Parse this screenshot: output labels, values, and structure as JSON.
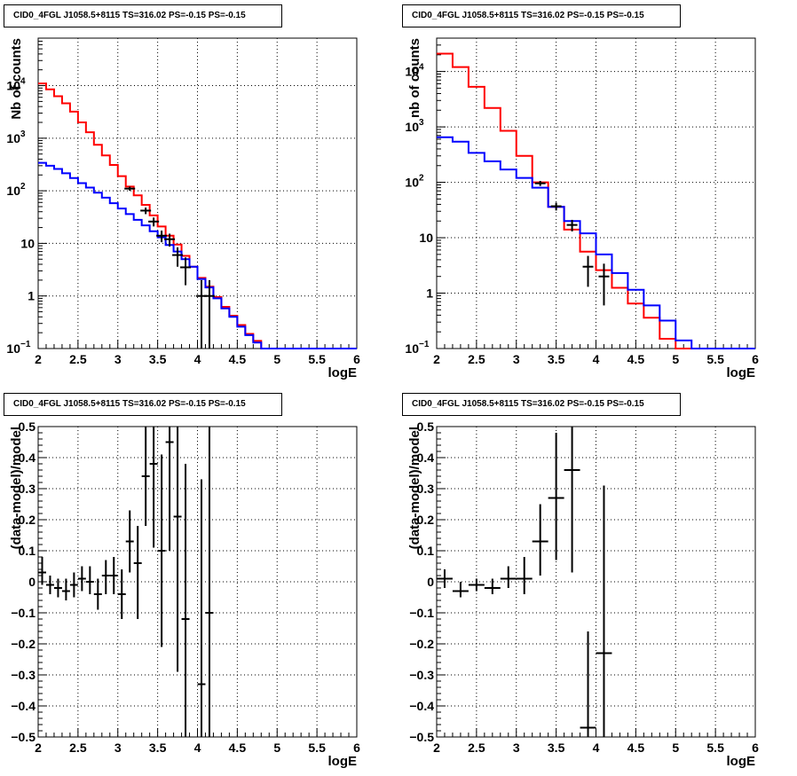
{
  "panels": [
    {
      "title": "CID0_4FGL J1058.5+8115 TS=316.02 PS=-0.15 PS=-0.15"
    },
    {
      "title": "CID0_4FGL J1058.5+8115 TS=316.02 PS=-0.15 PS=-0.15"
    },
    {
      "title": "CID0_4FGL J1058.5+8115 TS=316.02 PS=-0.15 PS=-0.15"
    },
    {
      "title": "CID0_4FGL J1058.5+8115 TS=316.02 PS=-0.15 PS=-0.15"
    }
  ],
  "colors": {
    "total_model": "#ff0000",
    "component_model": "#0000ff",
    "data": "#000000",
    "grid": "#000000"
  },
  "chart_data": [
    {
      "type": "line",
      "title": "CID0_4FGL J1058.5+8115 TS=316.02 PS=-0.15 PS=-0.15",
      "xlabel": "logE",
      "ylabel": "Nb of counts",
      "xlim": [
        2,
        6
      ],
      "ylim": [
        0.1,
        80000
      ],
      "yscale": "log",
      "grid": true,
      "xticks": [
        "2",
        "2.5",
        "3",
        "3.5",
        "4",
        "4.5",
        "5",
        "5.5",
        "6"
      ],
      "yticks": [
        {
          "value": 0.1,
          "label": "10",
          "sup": "−1"
        },
        {
          "value": 1,
          "label": "1",
          "sup": ""
        },
        {
          "value": 10,
          "label": "10",
          "sup": ""
        },
        {
          "value": 100,
          "label": "10",
          "sup": "2"
        },
        {
          "value": 1000,
          "label": "10",
          "sup": "3"
        },
        {
          "value": 10000,
          "label": "10",
          "sup": "4"
        }
      ],
      "bin_edges": [
        2.0,
        2.1,
        2.2,
        2.3,
        2.4,
        2.5,
        2.6,
        2.7,
        2.8,
        2.9,
        3.0,
        3.1,
        3.2,
        3.3,
        3.4,
        3.5,
        3.6,
        3.7,
        3.8,
        3.9,
        4.0,
        4.1,
        4.2,
        4.3,
        4.4,
        4.5,
        4.6,
        4.7,
        4.8,
        4.9,
        5.0,
        5.1,
        5.2,
        5.3,
        5.4,
        5.5,
        5.6,
        5.7,
        5.8,
        5.9,
        6.0
      ],
      "series": [
        {
          "name": "",
          "color": "#ff0000",
          "values": [
            11000,
            8500,
            6300,
            4600,
            3200,
            2000,
            1300,
            750,
            470,
            310,
            190,
            120,
            82,
            54,
            34,
            21,
            14,
            9.5,
            5.8,
            3.6,
            2.2,
            1.5,
            0.95,
            0.62,
            0.42,
            0.28,
            0.19,
            0.14,
            0.1,
            0.1,
            0.1,
            0.1,
            0.1,
            0.1,
            0.1,
            0.1,
            0.1,
            0.1,
            0.1,
            0.1
          ]
        },
        {
          "name": "",
          "color": "#0000ff",
          "values": [
            340,
            300,
            260,
            215,
            175,
            140,
            115,
            92,
            74,
            58,
            46,
            36,
            28,
            22,
            17,
            13,
            9.3,
            7.0,
            5.0,
            3.6,
            2.1,
            1.45,
            0.9,
            0.58,
            0.4,
            0.26,
            0.18,
            0.13,
            0.1,
            0.1,
            0.1,
            0.1,
            0.1,
            0.1,
            0.1,
            0.1,
            0.1,
            0.1,
            0.1,
            0.1
          ]
        }
      ],
      "points": [
        {
          "x": 3.15,
          "y": 110,
          "ylo": 100,
          "yhi": 120
        },
        {
          "x": 3.35,
          "y": 42,
          "ylo": 36,
          "yhi": 48
        },
        {
          "x": 3.45,
          "y": 26,
          "ylo": 21,
          "yhi": 31
        },
        {
          "x": 3.55,
          "y": 14,
          "ylo": 10.5,
          "yhi": 17.5
        },
        {
          "x": 3.65,
          "y": 12,
          "ylo": 8.7,
          "yhi": 15.3
        },
        {
          "x": 3.75,
          "y": 6,
          "ylo": 3.6,
          "yhi": 8.4
        },
        {
          "x": 3.85,
          "y": 3.5,
          "ylo": 1.6,
          "yhi": 5.4
        },
        {
          "x": 4.05,
          "y": 1.0,
          "ylo": 0.1,
          "yhi": 2.0
        },
        {
          "x": 4.15,
          "y": 1.0,
          "ylo": 0.1,
          "yhi": 2.0
        }
      ]
    },
    {
      "type": "line",
      "title": "CID0_4FGL J1058.5+8115 TS=316.02 PS=-0.15 PS=-0.15",
      "xlabel": "logE",
      "ylabel": "nb of counts",
      "xlim": [
        2,
        6
      ],
      "ylim": [
        0.1,
        40000
      ],
      "yscale": "log",
      "grid": true,
      "xticks": [
        "2",
        "2.5",
        "3",
        "3.5",
        "4",
        "4.5",
        "5",
        "5.5",
        "6"
      ],
      "yticks": [
        {
          "value": 0.1,
          "label": "10",
          "sup": "−1"
        },
        {
          "value": 1,
          "label": "1",
          "sup": ""
        },
        {
          "value": 10,
          "label": "10",
          "sup": ""
        },
        {
          "value": 100,
          "label": "10",
          "sup": "2"
        },
        {
          "value": 1000,
          "label": "10",
          "sup": "3"
        },
        {
          "value": 10000,
          "label": "10",
          "sup": "4"
        }
      ],
      "bin_edges": [
        2.0,
        2.2,
        2.4,
        2.6,
        2.8,
        3.0,
        3.2,
        3.4,
        3.6,
        3.8,
        4.0,
        4.2,
        4.4,
        4.6,
        4.8,
        5.0,
        5.2,
        5.4,
        5.6,
        5.8,
        6.0
      ],
      "series": [
        {
          "name": "",
          "color": "#ff0000",
          "values": [
            21000,
            12000,
            5300,
            2200,
            850,
            300,
            100,
            36,
            14,
            5.6,
            2.6,
            1.25,
            0.65,
            0.36,
            0.15,
            0.1,
            0.1,
            0.1,
            0.1,
            0.1
          ]
        },
        {
          "name": "",
          "color": "#0000ff",
          "values": [
            650,
            540,
            340,
            240,
            170,
            120,
            80,
            36,
            20,
            12,
            5.0,
            2.3,
            1.15,
            0.6,
            0.32,
            0.14,
            0.1,
            0.1,
            0.1,
            0.1
          ]
        }
      ],
      "points": [
        {
          "x": 3.3,
          "y": 96,
          "ylo": 86,
          "yhi": 106
        },
        {
          "x": 3.5,
          "y": 37,
          "ylo": 31,
          "yhi": 43
        },
        {
          "x": 3.7,
          "y": 17,
          "ylo": 13,
          "yhi": 21
        },
        {
          "x": 3.9,
          "y": 3.0,
          "ylo": 1.3,
          "yhi": 4.7
        },
        {
          "x": 4.1,
          "y": 2.0,
          "ylo": 0.6,
          "yhi": 3.4
        }
      ]
    },
    {
      "type": "scatter",
      "title": "CID0_4FGL J1058.5+8115 TS=316.02 PS=-0.15 PS=-0.15",
      "xlabel": "logE",
      "ylabel": "(data-model)/model",
      "xlim": [
        2,
        6
      ],
      "ylim": [
        -0.5,
        0.5
      ],
      "grid": true,
      "xticks": [
        "2",
        "2.5",
        "3",
        "3.5",
        "4",
        "4.5",
        "5",
        "5.5",
        "6"
      ],
      "yticks": [
        "−0.5",
        "−0.4",
        "−0.3",
        "−0.2",
        "−0.1",
        "0",
        "0.1",
        "0.2",
        "0.3",
        "0.4",
        "0.5"
      ],
      "points": [
        {
          "x": 2.05,
          "xlo": 2.0,
          "xhi": 2.1,
          "y": 0.03,
          "ylo": -0.01,
          "yhi": 0.08
        },
        {
          "x": 2.15,
          "xlo": 2.1,
          "xhi": 2.2,
          "y": -0.01,
          "ylo": -0.04,
          "yhi": 0.02
        },
        {
          "x": 2.25,
          "xlo": 2.2,
          "xhi": 2.3,
          "y": -0.02,
          "ylo": -0.05,
          "yhi": 0.01
        },
        {
          "x": 2.35,
          "xlo": 2.3,
          "xhi": 2.4,
          "y": -0.03,
          "ylo": -0.06,
          "yhi": 0.01
        },
        {
          "x": 2.45,
          "xlo": 2.4,
          "xhi": 2.5,
          "y": -0.01,
          "ylo": -0.05,
          "yhi": 0.03
        },
        {
          "x": 2.55,
          "xlo": 2.5,
          "xhi": 2.6,
          "y": 0.01,
          "ylo": -0.03,
          "yhi": 0.05
        },
        {
          "x": 2.65,
          "xlo": 2.6,
          "xhi": 2.7,
          "y": 0.0,
          "ylo": -0.04,
          "yhi": 0.05
        },
        {
          "x": 2.75,
          "xlo": 2.7,
          "xhi": 2.8,
          "y": -0.04,
          "ylo": -0.09,
          "yhi": 0.01
        },
        {
          "x": 2.85,
          "xlo": 2.8,
          "xhi": 2.9,
          "y": 0.02,
          "ylo": -0.04,
          "yhi": 0.07
        },
        {
          "x": 2.95,
          "xlo": 2.9,
          "xhi": 3.0,
          "y": 0.02,
          "ylo": -0.04,
          "yhi": 0.08
        },
        {
          "x": 3.05,
          "xlo": 3.0,
          "xhi": 3.1,
          "y": -0.04,
          "ylo": -0.12,
          "yhi": 0.04
        },
        {
          "x": 3.15,
          "xlo": 3.1,
          "xhi": 3.2,
          "y": 0.13,
          "ylo": 0.03,
          "yhi": 0.23
        },
        {
          "x": 3.25,
          "xlo": 3.2,
          "xhi": 3.3,
          "y": 0.06,
          "ylo": -0.12,
          "yhi": 0.18
        },
        {
          "x": 3.35,
          "xlo": 3.3,
          "xhi": 3.4,
          "y": 0.34,
          "ylo": 0.18,
          "yhi": 0.5
        },
        {
          "x": 3.45,
          "xlo": 3.4,
          "xhi": 3.5,
          "y": 0.38,
          "ylo": 0.11,
          "yhi": 0.5
        },
        {
          "x": 3.55,
          "xlo": 3.5,
          "xhi": 3.6,
          "y": 0.1,
          "ylo": -0.21,
          "yhi": 0.41
        },
        {
          "x": 3.65,
          "xlo": 3.6,
          "xhi": 3.7,
          "y": 0.45,
          "ylo": 0.1,
          "yhi": 0.5
        },
        {
          "x": 3.75,
          "xlo": 3.7,
          "xhi": 3.8,
          "y": 0.21,
          "ylo": -0.29,
          "yhi": 0.5
        },
        {
          "x": 3.85,
          "xlo": 3.8,
          "xhi": 3.9,
          "y": -0.12,
          "ylo": -0.5,
          "yhi": 0.38
        },
        {
          "x": 4.05,
          "xlo": 4.0,
          "xhi": 4.1,
          "y": -0.33,
          "ylo": -0.5,
          "yhi": 0.33
        },
        {
          "x": 4.15,
          "xlo": 4.1,
          "xhi": 4.2,
          "y": -0.1,
          "ylo": -0.5,
          "yhi": 0.5
        }
      ]
    },
    {
      "type": "scatter",
      "title": "CID0_4FGL J1058.5+8115 TS=316.02 PS=-0.15 PS=-0.15",
      "xlabel": "logE",
      "ylabel": "(data-model)/model",
      "xlim": [
        2,
        6
      ],
      "ylim": [
        -0.5,
        0.5
      ],
      "grid": true,
      "xticks": [
        "2",
        "2.5",
        "3",
        "3.5",
        "4",
        "4.5",
        "5",
        "5.5",
        "6"
      ],
      "yticks": [
        "−0.5",
        "−0.4",
        "−0.3",
        "−0.2",
        "−0.1",
        "0",
        "0.1",
        "0.2",
        "0.3",
        "0.4",
        "0.5"
      ],
      "points": [
        {
          "x": 2.1,
          "xlo": 2.0,
          "xhi": 2.2,
          "y": 0.01,
          "ylo": -0.02,
          "yhi": 0.04
        },
        {
          "x": 2.3,
          "xlo": 2.2,
          "xhi": 2.4,
          "y": -0.03,
          "ylo": -0.05,
          "yhi": 0.0
        },
        {
          "x": 2.5,
          "xlo": 2.4,
          "xhi": 2.6,
          "y": -0.01,
          "ylo": -0.03,
          "yhi": 0.01
        },
        {
          "x": 2.7,
          "xlo": 2.6,
          "xhi": 2.8,
          "y": -0.02,
          "ylo": -0.04,
          "yhi": 0.01
        },
        {
          "x": 2.9,
          "xlo": 2.8,
          "xhi": 3.0,
          "y": 0.01,
          "ylo": -0.02,
          "yhi": 0.05
        },
        {
          "x": 3.1,
          "xlo": 3.0,
          "xhi": 3.2,
          "y": 0.01,
          "ylo": -0.04,
          "yhi": 0.08
        },
        {
          "x": 3.3,
          "xlo": 3.2,
          "xhi": 3.4,
          "y": 0.13,
          "ylo": 0.02,
          "yhi": 0.25
        },
        {
          "x": 3.5,
          "xlo": 3.4,
          "xhi": 3.6,
          "y": 0.27,
          "ylo": 0.07,
          "yhi": 0.48
        },
        {
          "x": 3.7,
          "xlo": 3.6,
          "xhi": 3.8,
          "y": 0.36,
          "ylo": 0.03,
          "yhi": 0.5
        },
        {
          "x": 3.9,
          "xlo": 3.8,
          "xhi": 4.0,
          "y": -0.47,
          "ylo": -0.5,
          "yhi": -0.16
        },
        {
          "x": 4.1,
          "xlo": 4.0,
          "xhi": 4.2,
          "y": -0.23,
          "ylo": -0.5,
          "yhi": 0.31
        }
      ]
    }
  ]
}
